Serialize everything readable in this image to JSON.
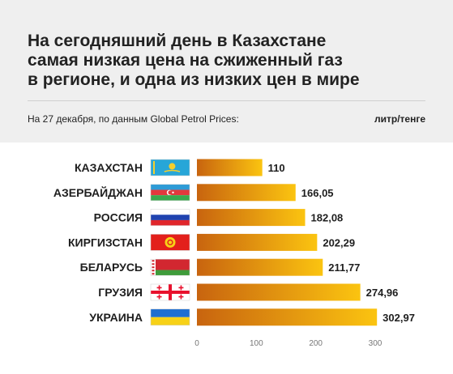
{
  "header": {
    "title_lines": [
      "На сегодняшний день в Казахстане",
      "самая низкая цена на сжиженный газ",
      "в регионе, и одна из низких цен в мире"
    ],
    "subtitle": "На 27 декабря, по данным  Global Petrol Prices:",
    "unit": "литр/тенге"
  },
  "chart_data": {
    "type": "bar",
    "orientation": "horizontal",
    "categories": [
      "КАЗАХСТАН",
      "АЗЕРБАЙДЖАН",
      "РОССИЯ",
      "КИРГИЗСТАН",
      "БЕЛАРУСЬ",
      "ГРУЗИЯ",
      "УКРАИНА"
    ],
    "value_labels": [
      "110",
      "166,05",
      "182,08",
      "202,29",
      "211,77",
      "274,96",
      "302,97"
    ],
    "values": [
      110,
      166.05,
      182.08,
      202.29,
      211.77,
      274.96,
      302.97
    ],
    "xlim": [
      0,
      300
    ],
    "x_ticks": [
      0,
      100,
      200,
      300
    ],
    "grid": false,
    "flags": [
      "kazakhstan-flag",
      "azerbaijan-flag",
      "russia-flag",
      "kyrgyzstan-flag",
      "belarus-flag",
      "georgia-flag",
      "ukraine-flag"
    ],
    "colors": {
      "bar_start": "#c8640f",
      "bar_end": "#fbc410",
      "tick_text": "#777777"
    }
  }
}
